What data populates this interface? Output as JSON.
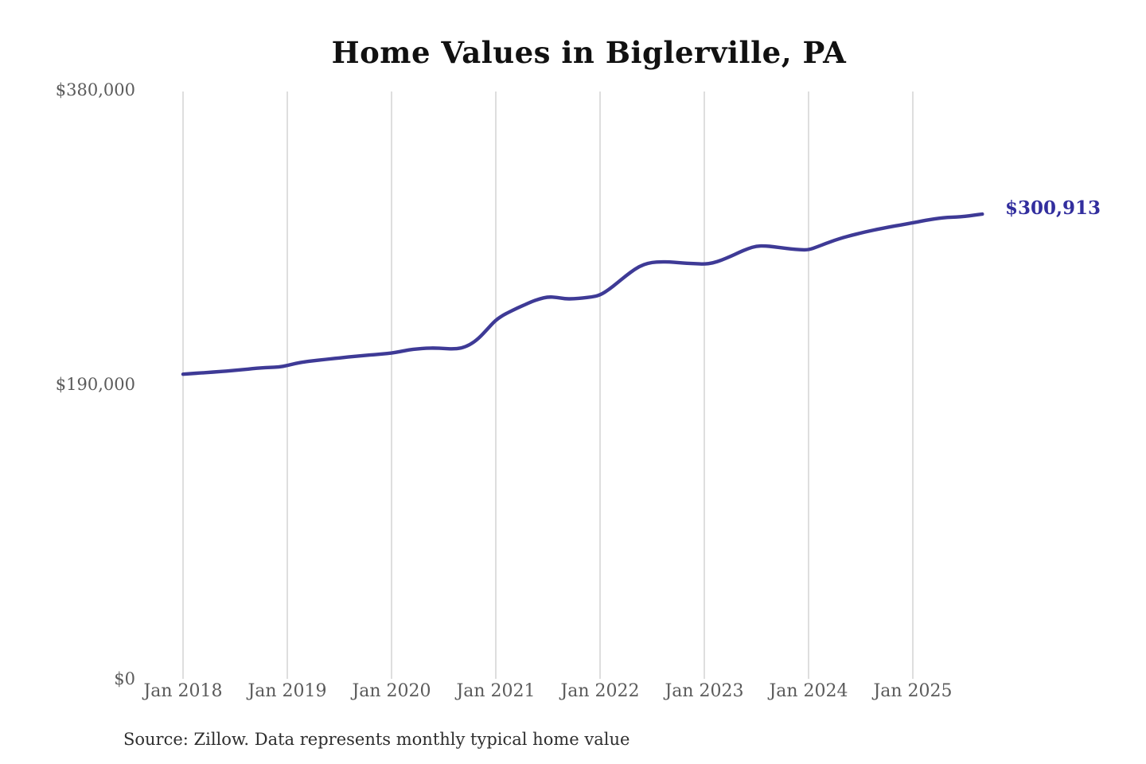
{
  "title": "Home Values in Biglerville, PA",
  "annotation": {
    "end_value_label": "$300,913"
  },
  "footer": {
    "source_note": "Source: Zillow. Data represents monthly typical home value"
  },
  "colors": {
    "line": "#3e3a96",
    "annotation": "#322e9e",
    "gridline": "#cccccc",
    "tick_text": "#5b5b5b",
    "title_text": "#111111"
  },
  "chart_data": {
    "type": "line",
    "title": "Home Values in Biglerville, PA",
    "series_name": "Monthly typical home value (USD)",
    "x_start": "2018-01",
    "x_end": "2025-09",
    "x_interval": "monthly",
    "xlabel": "",
    "ylabel": "",
    "ylim": [
      0,
      380000
    ],
    "grid": "vertical-only",
    "legend": "none",
    "x_tick_labels": [
      "Jan 2018",
      "Jan 2019",
      "Jan 2020",
      "Jan 2021",
      "Jan 2022",
      "Jan 2023",
      "Jan 2024",
      "Jan 2025"
    ],
    "y_tick_labels": [
      "$0",
      "$190,000",
      "$380,000"
    ],
    "end_label": "$300,913",
    "values": [
      197600,
      198000,
      198400,
      198800,
      199200,
      199600,
      200100,
      200600,
      201200,
      201700,
      202000,
      202200,
      203200,
      204600,
      205600,
      206300,
      206900,
      207500,
      208100,
      208700,
      209200,
      209700,
      210200,
      210700,
      211200,
      212200,
      213300,
      214000,
      214400,
      214500,
      214200,
      213900,
      214300,
      216500,
      220500,
      226500,
      232600,
      236200,
      239000,
      241600,
      244100,
      246200,
      247500,
      247200,
      246200,
      246300,
      246800,
      247400,
      248600,
      252200,
      256600,
      261200,
      265400,
      268400,
      269800,
      270100,
      270000,
      269600,
      269200,
      268900,
      268600,
      269400,
      271200,
      273600,
      276200,
      278600,
      280300,
      280400,
      279800,
      279100,
      278400,
      277900,
      277800,
      279800,
      282000,
      284000,
      285800,
      287300,
      288700,
      290000,
      291200,
      292300,
      293300,
      294300,
      295300,
      296400,
      297400,
      298200,
      298800,
      299000,
      299400,
      300200,
      300913
    ]
  },
  "layout_note": ""
}
